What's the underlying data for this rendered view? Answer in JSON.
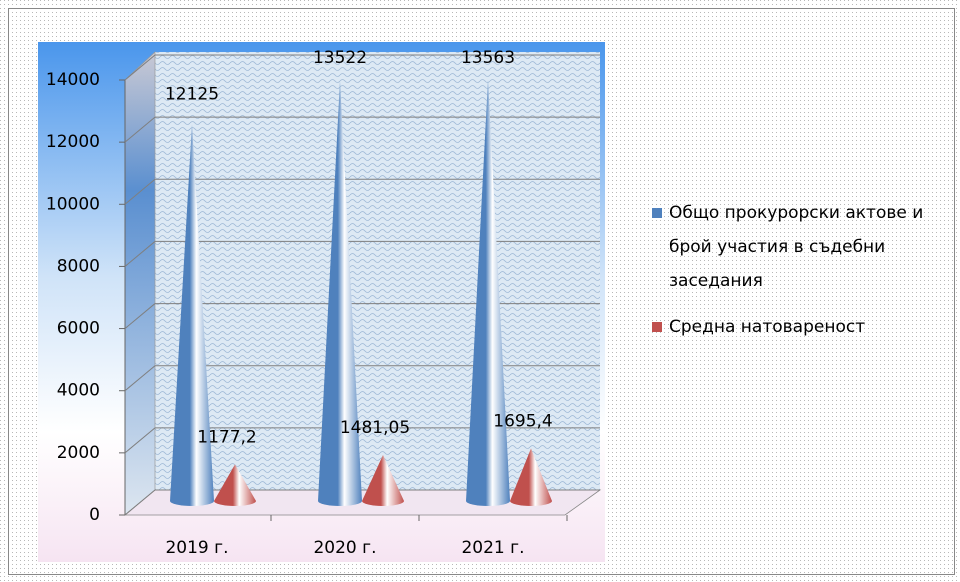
{
  "chart_data": {
    "type": "cone3d",
    "categories": [
      "2019 г.",
      "2020 г.",
      "2021 г."
    ],
    "series": [
      {
        "name": "Общо прокурорски актове и брой участия в съдебни заседания",
        "color": "#4f81bd",
        "values": [
          12125,
          13522,
          13563
        ]
      },
      {
        "name": "Средна натовареност",
        "color": "#c0504d",
        "values": [
          1177.2,
          1481.05,
          1695.4
        ],
        "value_labels": [
          "1177,2",
          "1481,05",
          "1695,4"
        ]
      }
    ],
    "ylim": [
      0,
      14000
    ],
    "yticks": [
      0,
      2000,
      4000,
      6000,
      8000,
      10000,
      12000,
      14000
    ],
    "grid": true,
    "legend": "right"
  }
}
